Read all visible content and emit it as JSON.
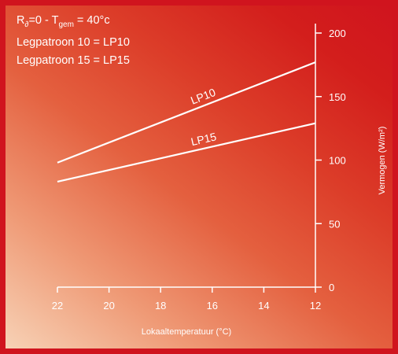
{
  "legend": {
    "line1_r": "R",
    "line1_r_sub": "∂",
    "line1_mid": "=0 - T",
    "line1_t_sub": "gem",
    "line1_end": " = 40°c",
    "line2": "Legpatroon 10 = LP10",
    "line3": "Legpatroon 15 = LP15"
  },
  "chart_data": {
    "type": "line",
    "title": "",
    "xlabel": "Lokaaltemperatuur (°C)",
    "ylabel": "Vermogen (W/m²)",
    "xlim": [
      22,
      12
    ],
    "ylim": [
      0,
      200
    ],
    "x_ticks": [
      22,
      20,
      18,
      16,
      14,
      12
    ],
    "y_ticks": [
      0,
      50,
      100,
      150,
      200
    ],
    "series": [
      {
        "name": "LP10",
        "x": [
          22,
          12
        ],
        "y": [
          98,
          177
        ]
      },
      {
        "name": "LP15",
        "x": [
          22,
          12
        ],
        "y": [
          83,
          129
        ]
      }
    ]
  }
}
